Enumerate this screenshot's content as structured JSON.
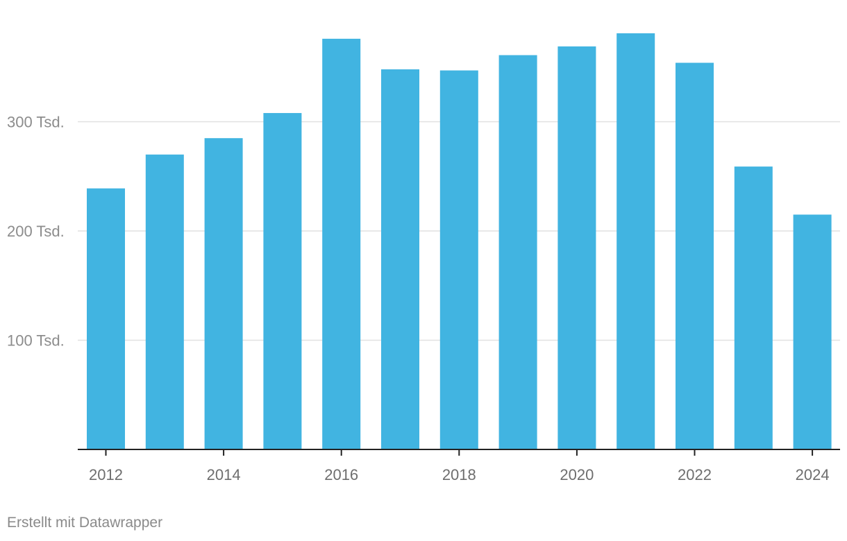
{
  "chart_data": {
    "type": "bar",
    "categories": [
      "2012",
      "2013",
      "2014",
      "2015",
      "2016",
      "2017",
      "2018",
      "2019",
      "2020",
      "2021",
      "2022",
      "2023",
      "2024"
    ],
    "values": [
      239000,
      270000,
      285000,
      308000,
      376000,
      348000,
      347000,
      361000,
      369000,
      381000,
      354000,
      259000,
      215000
    ],
    "ylim": [
      0,
      381000
    ],
    "y_ticks": [
      {
        "value": 100000,
        "label": "100 Tsd."
      },
      {
        "value": 200000,
        "label": "200 Tsd."
      },
      {
        "value": 300000,
        "label": "300 Tsd."
      }
    ],
    "x_tick_labels": [
      "2012",
      "2014",
      "2016",
      "2018",
      "2020",
      "2022",
      "2024"
    ],
    "grid": true,
    "bar_color": "#41b4e1",
    "title": "",
    "xlabel": "",
    "ylabel": ""
  },
  "footer": {
    "credit": "Erstellt mit Datawrapper"
  }
}
